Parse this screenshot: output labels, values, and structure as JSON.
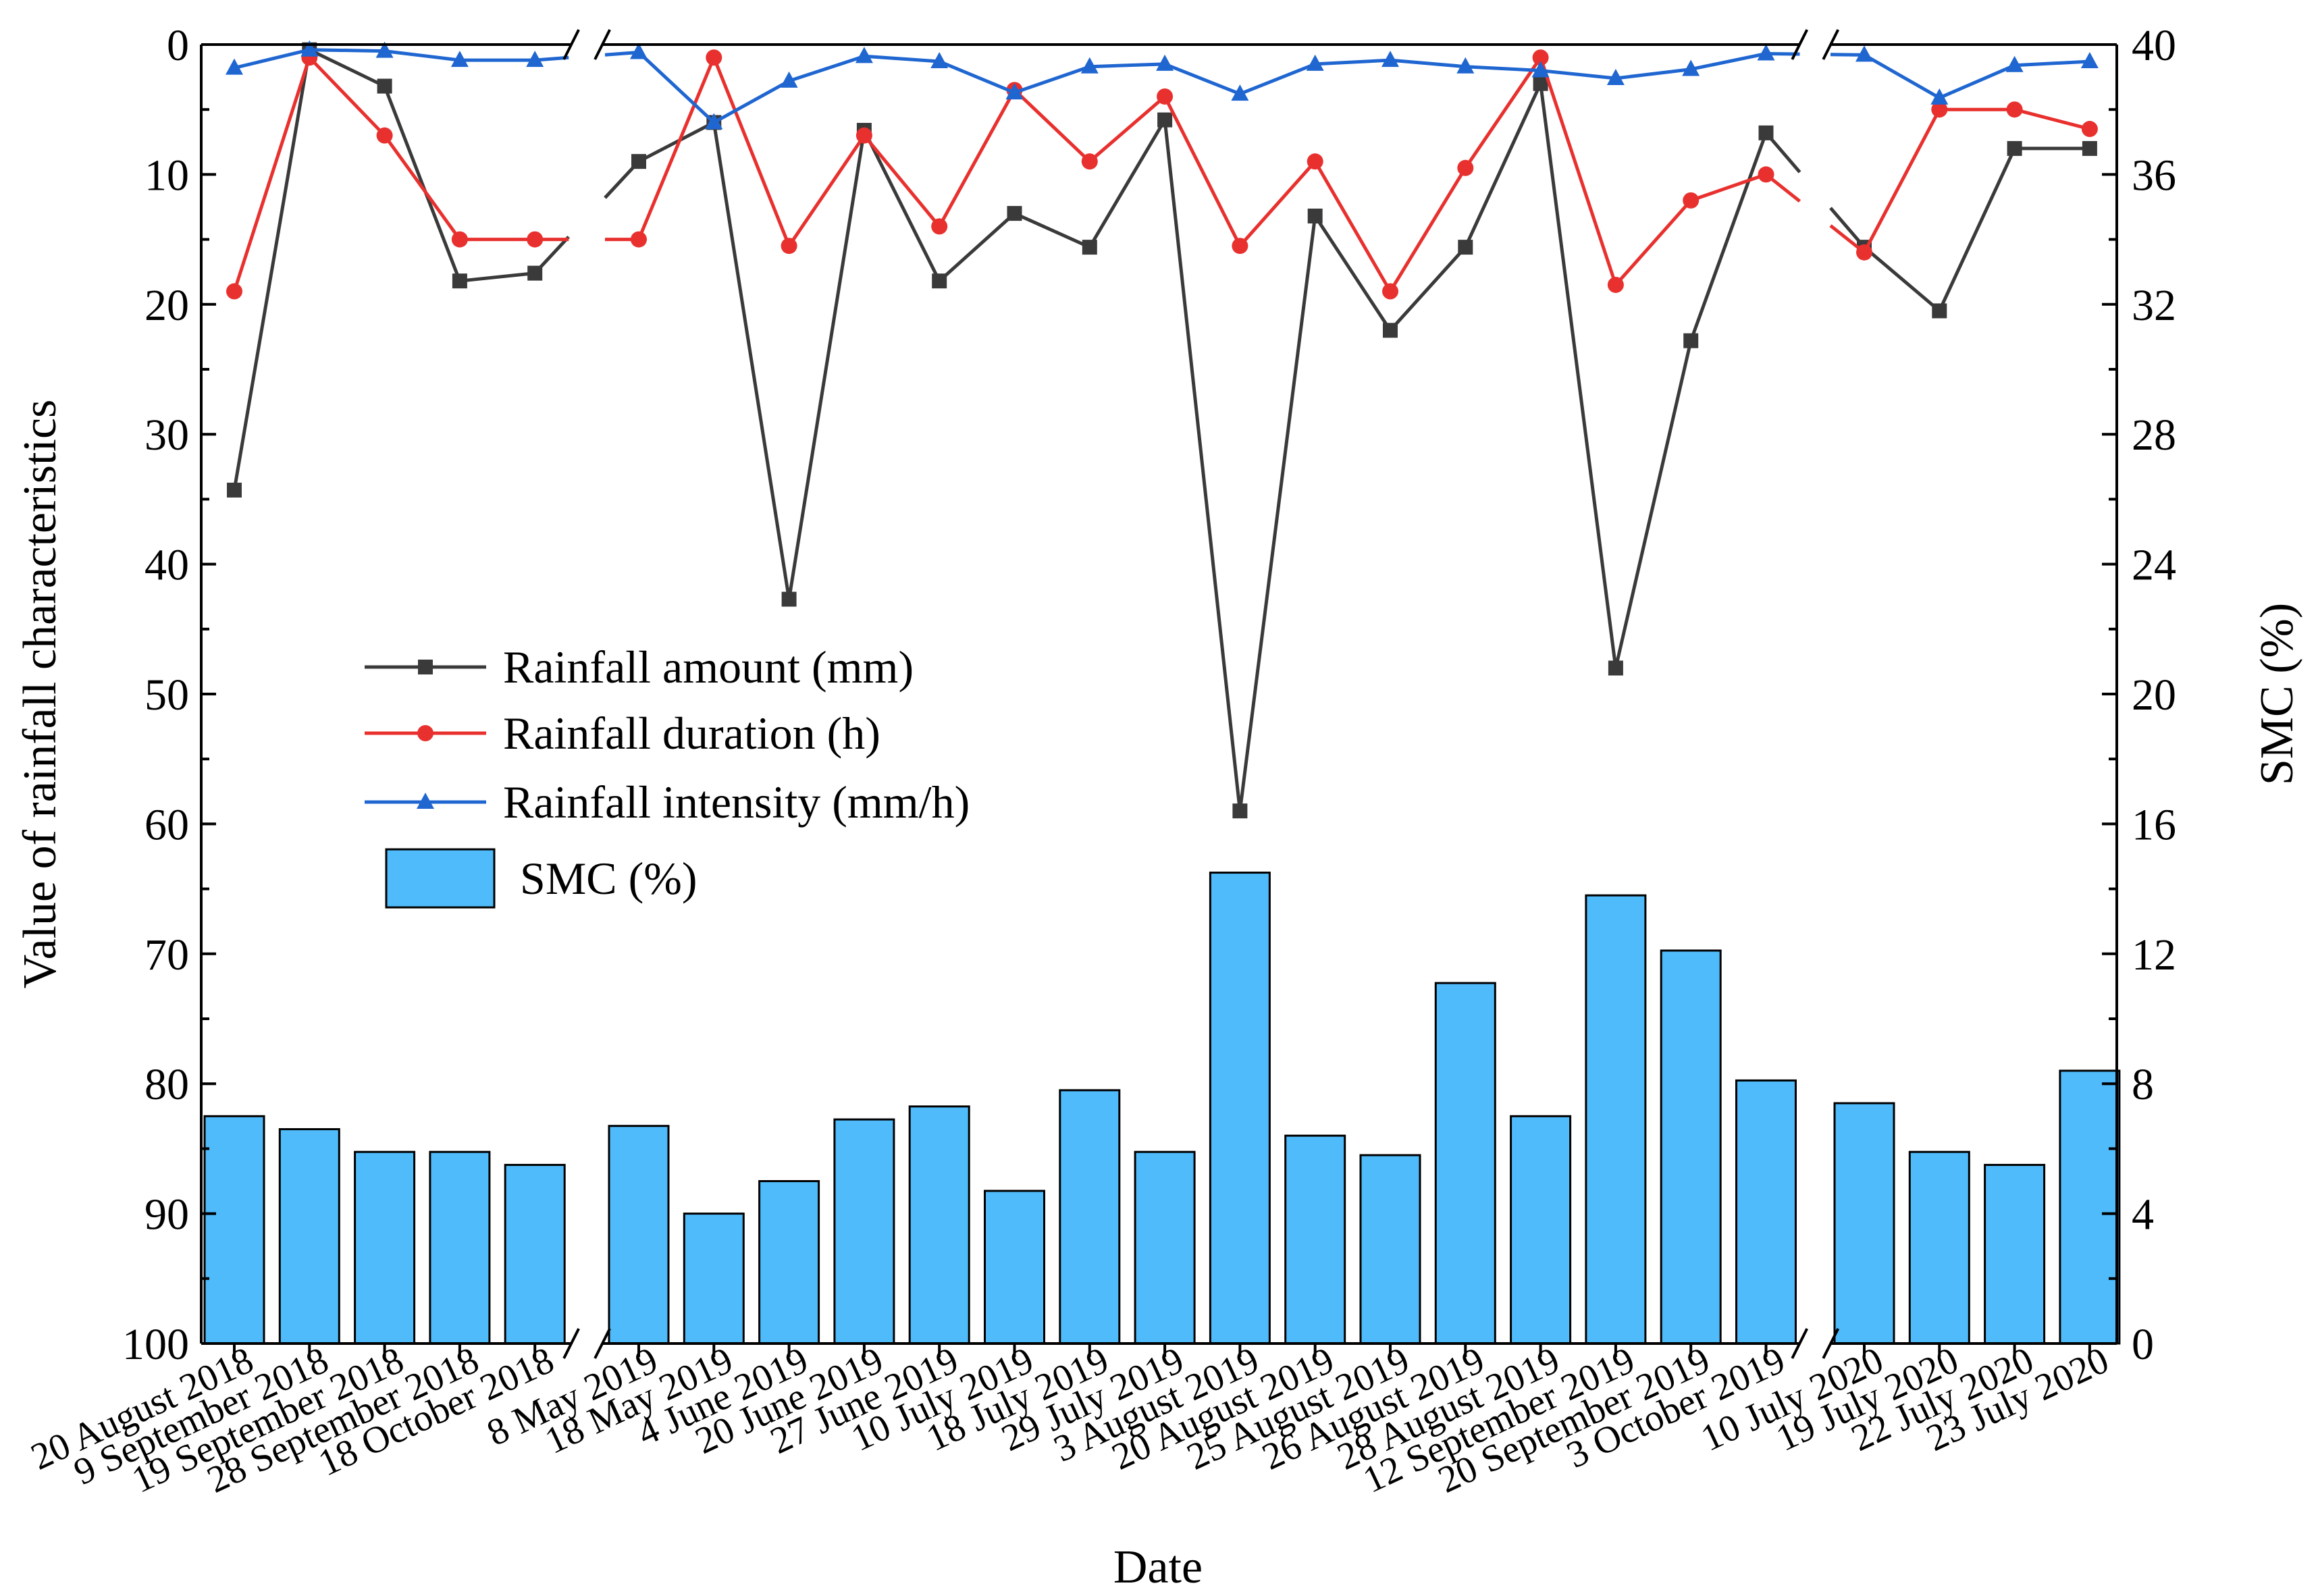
{
  "chart_data": {
    "type": "bar+line",
    "title": "",
    "xlabel": "Date",
    "ylabel_left": "Value of rainfall characteristics",
    "ylabel_right": "SMC (%)",
    "ylim_left": [
      100,
      0
    ],
    "yticks_left": [
      "0",
      "10",
      "20",
      "30",
      "40",
      "50",
      "60",
      "70",
      "80",
      "90",
      "100"
    ],
    "ylim_right": [
      0,
      40
    ],
    "yticks_right": [
      "0",
      "4",
      "8",
      "12",
      "16",
      "20",
      "24",
      "28",
      "32",
      "36",
      "40"
    ],
    "categories": [
      "20 August 2018",
      "9 September 2018",
      "19 September 2018",
      "28 September 2018",
      "18 October 2018",
      "8 May 2019",
      "18 May 2019",
      "4 June 2019",
      "20 June 2019",
      "27 June 2019",
      "10 July 2019",
      "18 July 2019",
      "29 July 2019",
      "3 August 2019",
      "20 August 2019",
      "25 August 2019",
      "26 August 2019",
      "28 August 2019",
      "12 September 2019",
      "20 September 2019",
      "3 October 2019",
      "10 July 2020",
      "19 July 2020",
      "22 July 2020",
      "23 July 2020"
    ],
    "segments": [
      [
        0,
        4
      ],
      [
        5,
        20
      ],
      [
        21,
        24
      ]
    ],
    "series": [
      {
        "name": "Rainfall amount (mm)",
        "axis": "left",
        "kind": "line",
        "marker": "square",
        "color": "#3a3a3a",
        "values": [
          34.3,
          0.4,
          3.2,
          18.2,
          17.6,
          9.0,
          6.0,
          42.7,
          6.6,
          18.2,
          13.0,
          15.6,
          5.8,
          59.0,
          13.2,
          22.0,
          15.6,
          3.0,
          48.0,
          22.8,
          6.8,
          15.6,
          20.5,
          8.0,
          8.0
        ]
      },
      {
        "name": "Rainfall duration (h)",
        "axis": "left",
        "kind": "line",
        "marker": "circle",
        "color": "#e8312e",
        "values": [
          19.0,
          1.0,
          7.0,
          15.0,
          15.0,
          15.0,
          1.0,
          15.5,
          7.0,
          14.0,
          3.5,
          9.0,
          4.0,
          15.5,
          9.0,
          19.0,
          9.5,
          1.0,
          18.5,
          12.0,
          10.0,
          16.0,
          5.0,
          5.0,
          6.5
        ]
      },
      {
        "name": "Rainfall intensity (mm/h)",
        "axis": "left",
        "kind": "line",
        "marker": "triangle",
        "color": "#1f66d1",
        "values": [
          1.8,
          0.4,
          0.5,
          1.2,
          1.2,
          0.6,
          6.0,
          2.8,
          0.9,
          1.3,
          3.7,
          1.7,
          1.5,
          3.8,
          1.5,
          1.2,
          1.7,
          2.0,
          2.6,
          1.9,
          0.7,
          0.8,
          4.1,
          1.6,
          1.3
        ]
      },
      {
        "name": "SMC (%)",
        "axis": "right",
        "kind": "bar",
        "color": "#4fbbfa",
        "values": [
          7.0,
          6.6,
          5.9,
          5.9,
          5.5,
          6.7,
          4.0,
          5.0,
          6.9,
          7.3,
          4.7,
          7.8,
          5.9,
          14.5,
          6.4,
          5.8,
          11.1,
          7.0,
          13.8,
          12.1,
          8.1,
          7.4,
          5.9,
          5.5,
          8.4
        ]
      }
    ],
    "legend": {
      "placement": "center-left",
      "entries": [
        "Rainfall amount (mm)",
        "Rainfall duration (h)",
        "Rainfall intensity (mm/h)",
        "SMC (%)"
      ]
    }
  }
}
